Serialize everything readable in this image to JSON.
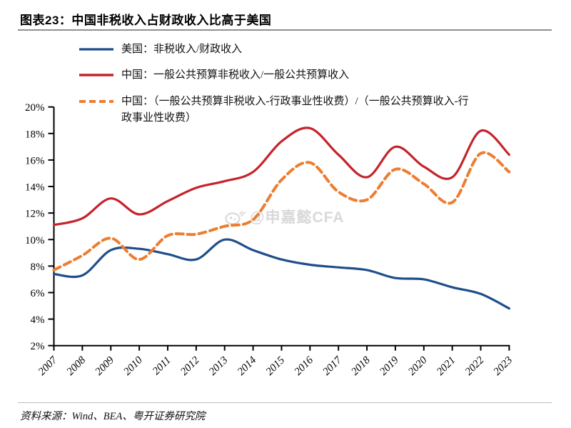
{
  "title": "图表23：中国非税收入占财政收入比高于美国",
  "source": "资料来源：Wind、BEA、粤开证券研究院",
  "watermark": "@申嘉懿CFA",
  "watermark_icon": "weibo-icon",
  "colors": {
    "us": "#1F4E8B",
    "china": "#C5232B",
    "china_adj": "#ED7D31",
    "axis": "#000000",
    "watermark": "#D9D9D9",
    "title_rule": "#8F8F8F",
    "source_rule": "#BDBDBD"
  },
  "chart_data": {
    "type": "line",
    "x_labels": [
      "2007",
      "2008",
      "2009",
      "2010",
      "2011",
      "2012",
      "2013",
      "2014",
      "2015",
      "2016",
      "2017",
      "2018",
      "2019",
      "2020",
      "2021",
      "2022",
      "2023"
    ],
    "y_tick_labels": [
      "20%",
      "18%",
      "16%",
      "14%",
      "12%",
      "10%",
      "8%",
      "6%",
      "4%",
      "2%"
    ],
    "ylim": [
      2,
      20
    ],
    "ytick_step": 2,
    "grid": false,
    "legend_position": "top-left",
    "series": [
      {
        "name": "美国：非税收入/财政收入",
        "color_key": "us",
        "style": "solid",
        "values": [
          7.4,
          7.3,
          9.2,
          9.3,
          8.9,
          8.5,
          10.0,
          9.2,
          8.5,
          8.1,
          7.9,
          7.7,
          7.1,
          7.0,
          6.4,
          5.9,
          4.8
        ]
      },
      {
        "name": "中国：一般公共预算非税收入/一般公共预算收入",
        "color_key": "china",
        "style": "solid",
        "values": [
          11.1,
          11.6,
          13.1,
          11.9,
          12.9,
          13.9,
          14.4,
          15.1,
          17.4,
          18.4,
          16.4,
          14.7,
          17.0,
          15.5,
          14.7,
          18.2,
          16.4
        ]
      },
      {
        "name": "中国：（一般公共预算非税收入-行政事业性收费）/（一般公共预算收入-行政事业性收费）",
        "color_key": "china_adj",
        "style": "dashed",
        "values": [
          7.7,
          8.8,
          10.1,
          8.5,
          10.3,
          10.4,
          11.0,
          11.5,
          14.5,
          15.8,
          13.6,
          13.0,
          15.3,
          14.2,
          12.8,
          16.5,
          15.1
        ]
      }
    ]
  }
}
